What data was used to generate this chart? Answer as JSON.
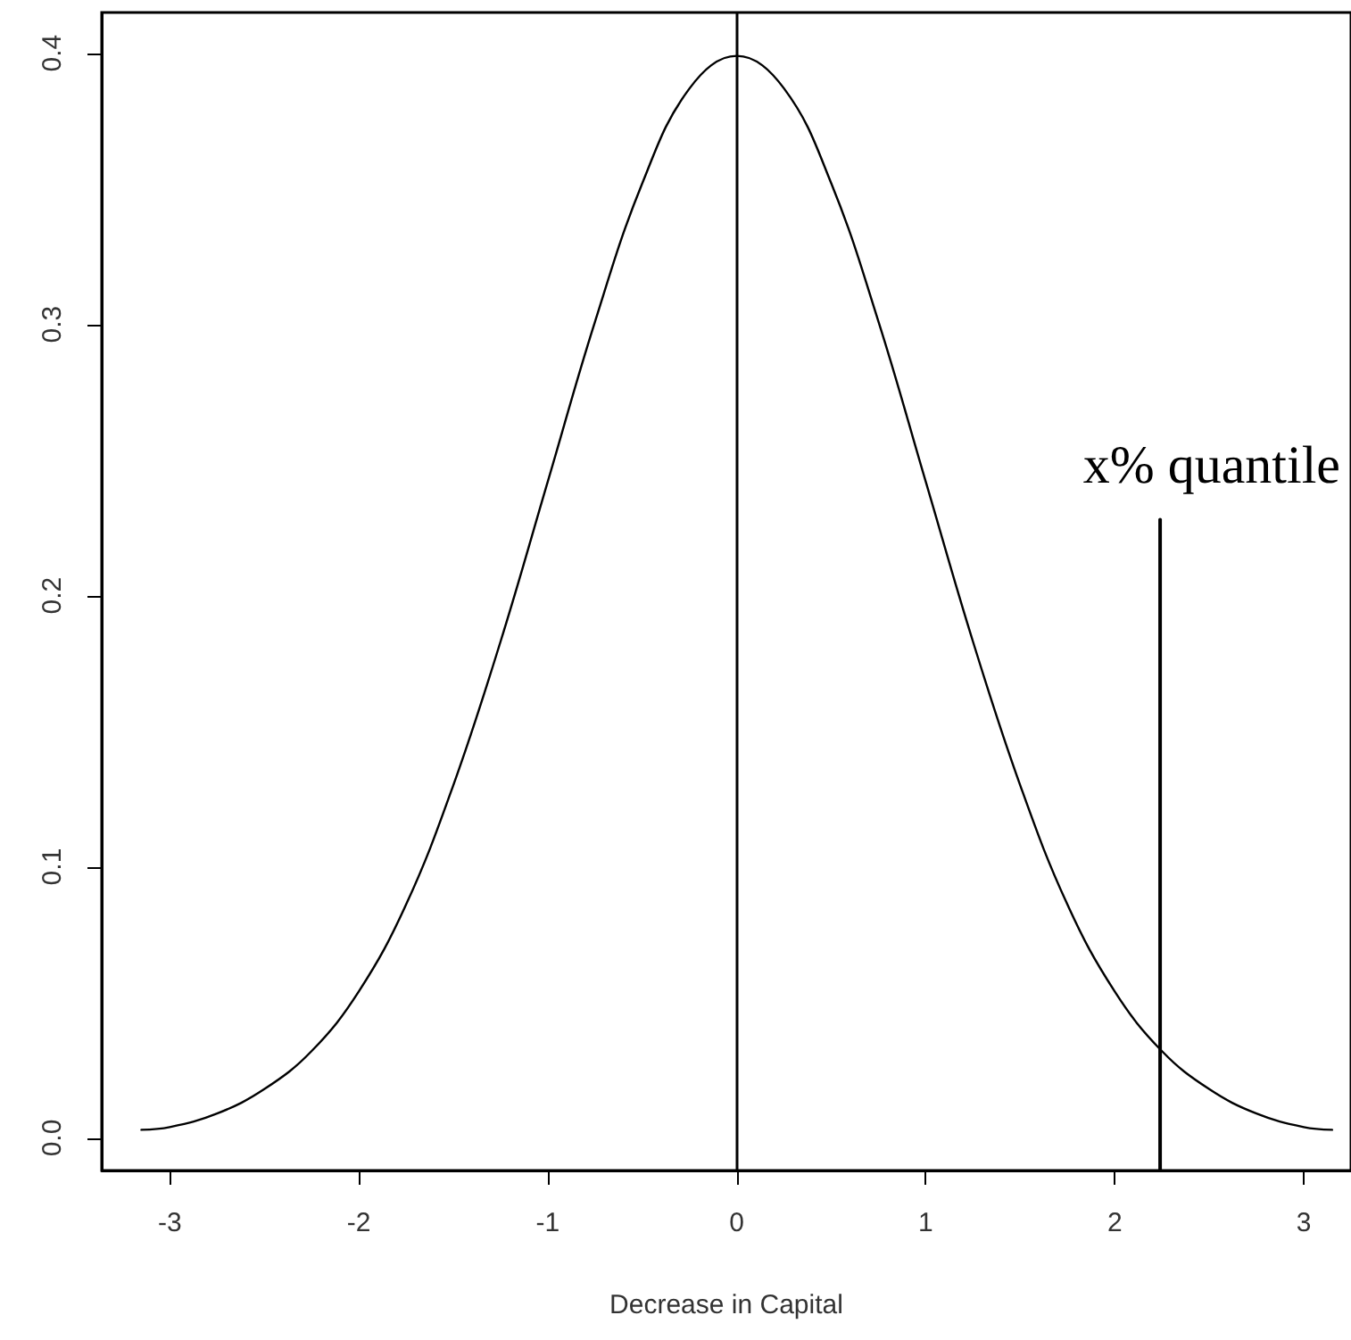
{
  "chart_data": {
    "type": "line",
    "xlabel": "Decrease in Capital",
    "x": [
      -3.15,
      -3,
      -2.75,
      -2.5,
      -2.25,
      -2,
      -1.75,
      -1.5,
      -1.25,
      -1,
      -0.75,
      -0.5,
      -0.25,
      0,
      0.25,
      0.5,
      0.75,
      1,
      1.25,
      1.5,
      1.75,
      2,
      2.25,
      2.5,
      2.75,
      3,
      3.15
    ],
    "series": [
      {
        "color": "#000000",
        "values": [
          0.003,
          0.004,
          0.009,
          0.018,
          0.032,
          0.054,
          0.086,
          0.13,
          0.183,
          0.242,
          0.301,
          0.352,
          0.387,
          0.399,
          0.387,
          0.352,
          0.301,
          0.242,
          0.183,
          0.13,
          0.086,
          0.054,
          0.032,
          0.018,
          0.009,
          0.004,
          0.003
        ]
      },
      {
        "type": "line",
        "color": "#000000",
        "x": [
          2.24,
          2.24
        ],
        "values": [
          -0.012,
          0.228
        ]
      }
    ],
    "ref_lines": [
      {
        "axis": "x",
        "value": 0,
        "color": "#000000"
      }
    ],
    "annotations": [
      "x% quantile"
    ],
    "xlim": [
      -3.36,
      3.25
    ],
    "ylim": [
      -0.012,
      0.415
    ],
    "xticks": [
      -3,
      -2,
      -1,
      0,
      1,
      2,
      3
    ],
    "yticks": [
      {
        "value": 0,
        "label": "0.0"
      },
      0.1,
      0.2,
      0.3,
      0.4
    ],
    "marker": "none",
    "line_style": "solid"
  }
}
